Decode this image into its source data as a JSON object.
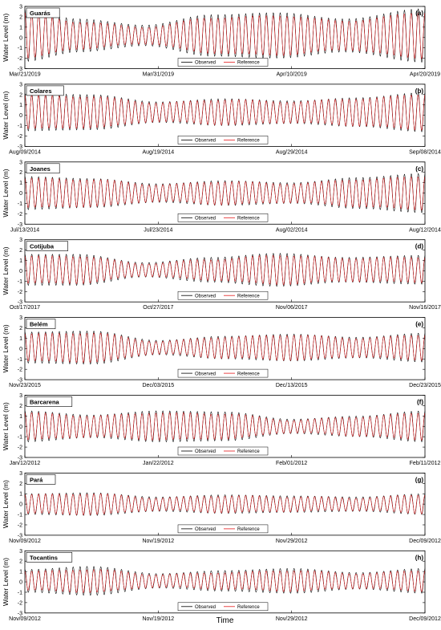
{
  "figure": {
    "xlabel": "Time",
    "ylabel": "Water Level (m)",
    "legend": {
      "observed": "Observed",
      "reference": "Reference"
    },
    "colors": {
      "observed": "#000000",
      "reference": "#e41a1c",
      "frame": "#000000"
    }
  },
  "chart_data": [
    {
      "type": "line",
      "label": "(a)",
      "station": "Guarás",
      "ylim": [
        -3,
        3
      ],
      "yticks": [
        "3",
        "2",
        "1",
        "0",
        "-1",
        "-2",
        "-3"
      ],
      "xticks": [
        "Mar/21/2019",
        "Mar/31/2019",
        "Apr/10/2019",
        "Apr/20/2019"
      ],
      "span_days": 30,
      "semidiurnal_period_days": 0.5175,
      "envelope": {
        "days": [
          0,
          4,
          9,
          14,
          19,
          24,
          30
        ],
        "observed_amplitude": [
          2.5,
          1.6,
          1.0,
          2.0,
          2.2,
          1.6,
          2.6
        ],
        "reference_amplitude": [
          2.2,
          1.3,
          0.8,
          1.7,
          1.9,
          1.4,
          2.2
        ]
      },
      "mean_level": 0.2,
      "legend_position": "bottom-right",
      "grid": false
    },
    {
      "type": "line",
      "label": "(b)",
      "station": "Colares",
      "ylim": [
        -3,
        3
      ],
      "yticks": [
        "3",
        "2",
        "1",
        "0",
        "-1",
        "-2",
        "-3"
      ],
      "xticks": [
        "Aug/09/2014",
        "Aug/19/2014",
        "Aug/29/2014",
        "Sep/08/2014"
      ],
      "span_days": 30,
      "semidiurnal_period_days": 0.5175,
      "envelope": {
        "days": [
          0,
          5,
          10,
          15,
          20,
          25,
          30
        ],
        "observed_amplitude": [
          1.8,
          1.7,
          1.0,
          1.3,
          1.1,
          1.4,
          1.9
        ],
        "reference_amplitude": [
          1.6,
          1.5,
          0.9,
          1.2,
          1.0,
          1.3,
          1.7
        ]
      },
      "mean_level": 0.3,
      "legend_position": "bottom-right",
      "grid": false
    },
    {
      "type": "line",
      "label": "(c)",
      "station": "Joanes",
      "ylim": [
        -3,
        3
      ],
      "yticks": [
        "3",
        "2",
        "1",
        "0",
        "-1",
        "-2",
        "-3"
      ],
      "xticks": [
        "Jul/13/2014",
        "Jul/23/2014",
        "Aug/02/2014",
        "Aug/12/2014"
      ],
      "span_days": 30,
      "semidiurnal_period_days": 0.5175,
      "envelope": {
        "days": [
          0,
          5,
          10,
          15,
          20,
          25,
          30
        ],
        "observed_amplitude": [
          1.6,
          1.4,
          0.9,
          1.2,
          1.0,
          1.5,
          1.9
        ],
        "reference_amplitude": [
          1.4,
          1.3,
          0.8,
          1.1,
          0.9,
          1.3,
          1.6
        ]
      },
      "mean_level": 0.0,
      "legend_position": "bottom-right",
      "grid": false
    },
    {
      "type": "line",
      "label": "(d)",
      "station": "Cotijuba",
      "ylim": [
        -3,
        3
      ],
      "yticks": [
        "3",
        "2",
        "1",
        "0",
        "-1",
        "-2",
        "-3"
      ],
      "xticks": [
        "Oct/17/2017",
        "Oct/27/2017",
        "Nov/06/2017",
        "Nov/16/2017"
      ],
      "span_days": 30,
      "semidiurnal_period_days": 0.5175,
      "envelope": {
        "days": [
          0,
          4,
          9,
          14,
          19,
          24,
          30
        ],
        "observed_amplitude": [
          1.5,
          1.5,
          0.7,
          1.2,
          1.6,
          1.2,
          1.4
        ],
        "reference_amplitude": [
          1.3,
          1.3,
          0.6,
          1.0,
          1.4,
          1.1,
          1.2
        ]
      },
      "mean_level": 0.1,
      "legend_position": "bottom-right",
      "grid": false
    },
    {
      "type": "line",
      "label": "(e)",
      "station": "Belém",
      "ylim": [
        -3,
        3
      ],
      "yticks": [
        "3",
        "2",
        "1",
        "0",
        "-1",
        "-2",
        "-3"
      ],
      "xticks": [
        "Nov/23/2015",
        "Dec/03/2015",
        "Dec/13/2015",
        "Dec/23/2015"
      ],
      "span_days": 30,
      "semidiurnal_period_days": 0.5175,
      "envelope": {
        "days": [
          0,
          5,
          10,
          15,
          20,
          25,
          30
        ],
        "observed_amplitude": [
          1.5,
          1.6,
          0.7,
          1.1,
          1.3,
          1.0,
          1.4
        ],
        "reference_amplitude": [
          1.3,
          1.4,
          0.6,
          1.0,
          1.2,
          0.9,
          1.2
        ]
      },
      "mean_level": 0.1,
      "legend_position": "bottom-right",
      "grid": false
    },
    {
      "type": "line",
      "label": "(f)",
      "station": "Barcarena",
      "ylim": [
        -3,
        3
      ],
      "yticks": [
        "3",
        "2",
        "1",
        "0",
        "-1",
        "-2",
        "-3"
      ],
      "xticks": [
        "Jan/12/2012",
        "Jan/22/2012",
        "Feb/01/2012",
        "Feb/11/2012"
      ],
      "span_days": 30,
      "semidiurnal_period_days": 0.5175,
      "envelope": {
        "days": [
          0,
          5,
          10,
          15,
          20,
          25,
          30
        ],
        "observed_amplitude": [
          1.5,
          1.1,
          1.5,
          1.4,
          0.7,
          1.0,
          1.5
        ],
        "reference_amplitude": [
          1.3,
          1.0,
          1.3,
          1.2,
          0.6,
          0.9,
          1.3
        ]
      },
      "mean_level": 0.0,
      "legend_position": "bottom-right",
      "grid": false
    },
    {
      "type": "line",
      "label": "(g)",
      "station": "Pará",
      "ylim": [
        -3,
        3
      ],
      "yticks": [
        "3",
        "2",
        "1",
        "0",
        "-1",
        "-2",
        "-3"
      ],
      "xticks": [
        "Nov/09/2012",
        "Nov/19/2012",
        "Nov/29/2012",
        "Dec/09/2012"
      ],
      "span_days": 30,
      "semidiurnal_period_days": 0.5175,
      "envelope": {
        "days": [
          0,
          5,
          10,
          15,
          20,
          25,
          30
        ],
        "observed_amplitude": [
          1.0,
          1.1,
          0.7,
          0.9,
          0.8,
          0.7,
          1.0
        ],
        "reference_amplitude": [
          0.9,
          1.0,
          0.6,
          0.8,
          0.7,
          0.6,
          0.9
        ]
      },
      "mean_level": 0.0,
      "legend_position": "bottom-right",
      "grid": false
    },
    {
      "type": "line",
      "label": "(h)",
      "station": "Tocantins",
      "ylim": [
        -3,
        3
      ],
      "yticks": [
        "3",
        "2",
        "1",
        "0",
        "-1",
        "-2",
        "-3"
      ],
      "xticks": [
        "Nov/09/2012",
        "Nov/19/2012",
        "Nov/29/2012",
        "Dec/09/2012"
      ],
      "span_days": 30,
      "semidiurnal_period_days": 0.5175,
      "envelope": {
        "days": [
          0,
          5,
          10,
          15,
          20,
          25,
          30
        ],
        "observed_amplitude": [
          1.1,
          1.4,
          0.7,
          1.0,
          1.2,
          0.8,
          1.2
        ],
        "reference_amplitude": [
          0.9,
          1.1,
          0.6,
          0.8,
          1.0,
          0.7,
          1.0
        ]
      },
      "mean_level": 0.1,
      "legend_position": "bottom-right",
      "grid": false
    }
  ]
}
